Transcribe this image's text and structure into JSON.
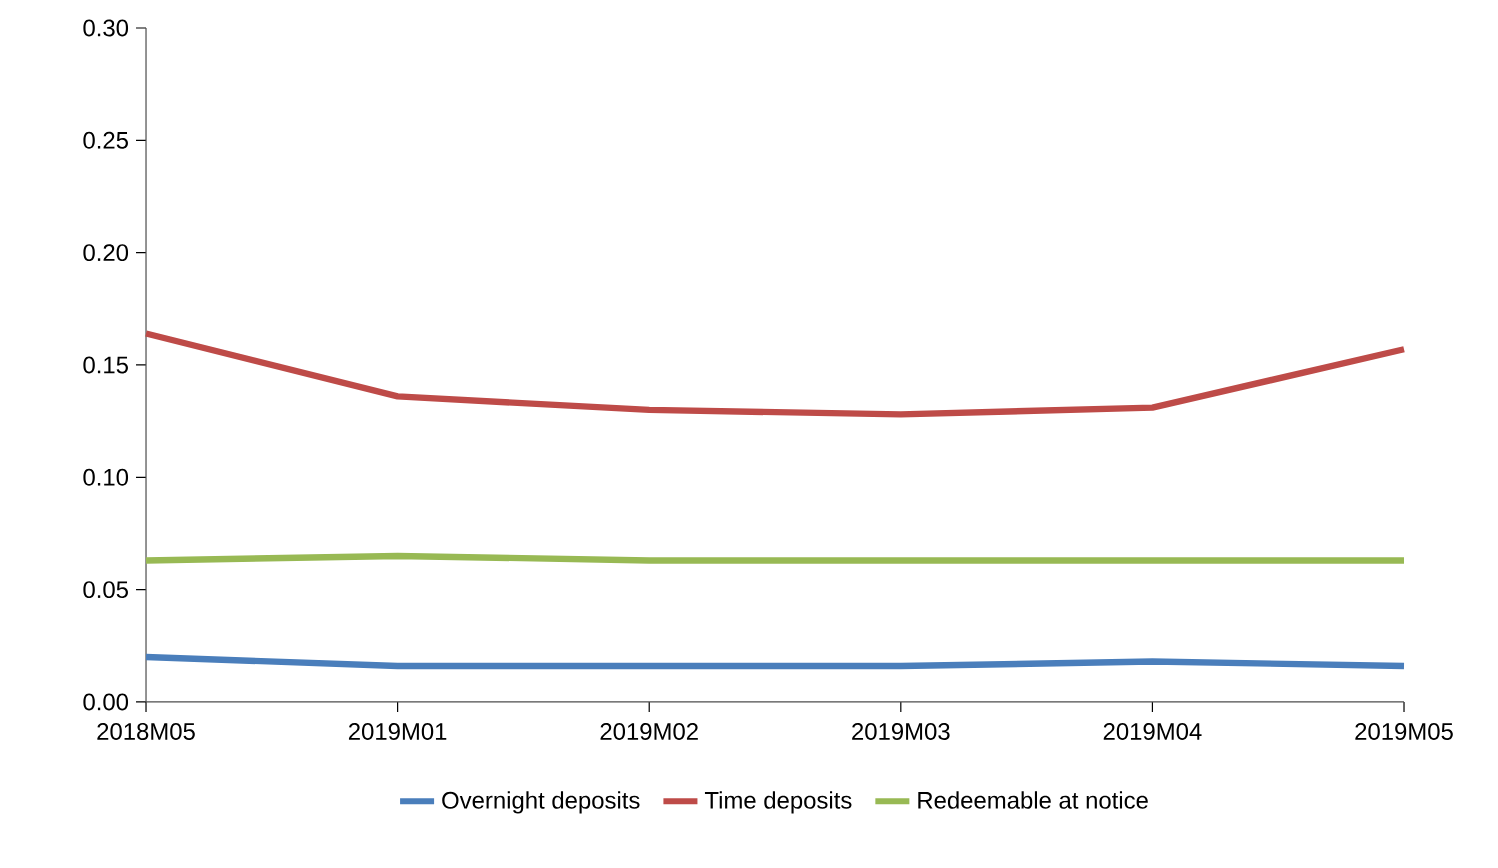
{
  "chart_data": {
    "type": "line",
    "categories": [
      "2018M05",
      "2019M01",
      "2019M02",
      "2019M03",
      "2019M04",
      "2019M05"
    ],
    "series": [
      {
        "name": "Overnight deposits",
        "color": "#4a7ebb",
        "values": [
          0.02,
          0.016,
          0.016,
          0.016,
          0.018,
          0.016
        ]
      },
      {
        "name": "Time deposits",
        "color": "#be4b48",
        "values": [
          0.164,
          0.136,
          0.13,
          0.128,
          0.131,
          0.157
        ]
      },
      {
        "name": "Redeemable at notice",
        "color": "#98b954",
        "values": [
          0.063,
          0.065,
          0.063,
          0.063,
          0.063,
          0.063
        ]
      }
    ],
    "ylim": [
      0,
      0.3
    ],
    "yticks": [
      {
        "value": 0,
        "label": "0.00"
      },
      {
        "value": 0.05,
        "label": "0.05"
      },
      {
        "value": 0.1,
        "label": "0.10"
      },
      {
        "value": 0.15,
        "label": "0.15"
      },
      {
        "value": 0.2,
        "label": "0.20"
      },
      {
        "value": 0.25,
        "label": "0.25"
      },
      {
        "value": 0.3,
        "label": "0.30"
      }
    ],
    "legend": "bottom",
    "grid": false,
    "marker": "none",
    "line_style": "solid"
  }
}
